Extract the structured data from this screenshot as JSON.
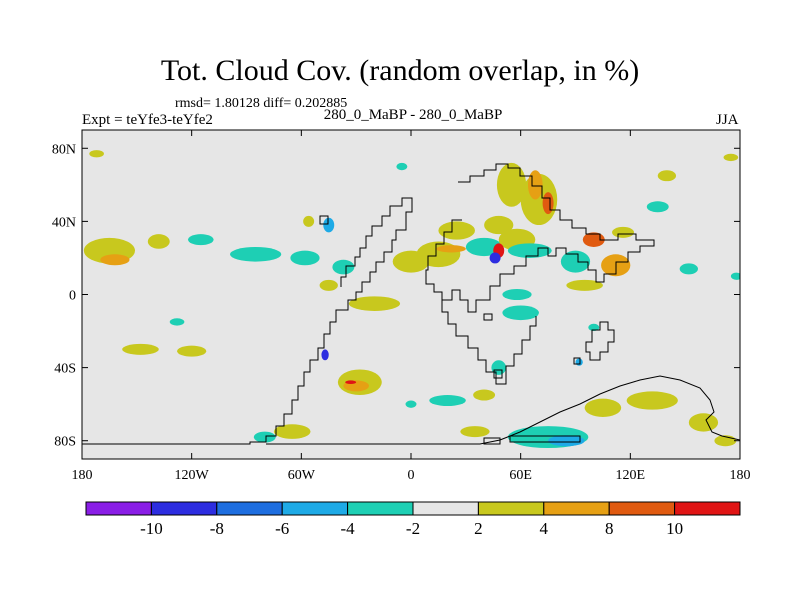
{
  "header": {
    "title": "Tot. Cloud Cov. (random overlap, in %)",
    "stats": "rmsd= 1.80128 diff= 0.202885",
    "subtitle": "280_0_MaBP - 280_0_MaBP",
    "left_label": "Expt = teYfe3-teYfe2",
    "right_label": "JJA"
  },
  "chart_data": {
    "type": "heatmap",
    "title": "Tot. Cloud Cov. (random overlap, in %)",
    "xlim": [
      -180,
      180
    ],
    "ylim": [
      -90,
      90
    ],
    "x_ticks": [
      {
        "value": -180,
        "label": "180"
      },
      {
        "value": -120,
        "label": "120W"
      },
      {
        "value": -60,
        "label": "60W"
      },
      {
        "value": 0,
        "label": "0"
      },
      {
        "value": 60,
        "label": "60E"
      },
      {
        "value": 120,
        "label": "120E"
      },
      {
        "value": 180,
        "label": "180"
      }
    ],
    "y_ticks": [
      {
        "value": 80,
        "label": "80N"
      },
      {
        "value": 40,
        "label": "40N"
      },
      {
        "value": 0,
        "label": "0"
      },
      {
        "value": -40,
        "label": "40S"
      },
      {
        "value": -80,
        "label": "80S"
      }
    ],
    "colorbar": {
      "labels": [
        "-10",
        "-8",
        "-6",
        "-4",
        "-2",
        "2",
        "4",
        "8",
        "10"
      ],
      "colors": [
        "#8a1ee6",
        "#2d2de0",
        "#1e6ee0",
        "#1eaae6",
        "#1ecfb4",
        "#e6e6e6",
        "#c8c81e",
        "#e6a014",
        "#e05a10",
        "#e01414"
      ]
    },
    "background_color": "#e6e6e6",
    "patches": [
      {
        "lon": -165,
        "lat": 24,
        "rx": 14,
        "ry": 7,
        "color": "#c8c81e"
      },
      {
        "lon": -162,
        "lat": 19,
        "rx": 8,
        "ry": 3,
        "color": "#e6a014"
      },
      {
        "lon": -138,
        "lat": 29,
        "rx": 6,
        "ry": 4,
        "color": "#c8c81e"
      },
      {
        "lon": -115,
        "lat": 30,
        "rx": 7,
        "ry": 3,
        "color": "#1ecfb4"
      },
      {
        "lon": -128,
        "lat": -15,
        "rx": 4,
        "ry": 2,
        "color": "#1ecfb4"
      },
      {
        "lon": -148,
        "lat": -30,
        "rx": 10,
        "ry": 3,
        "color": "#c8c81e"
      },
      {
        "lon": -120,
        "lat": -31,
        "rx": 8,
        "ry": 3,
        "color": "#c8c81e"
      },
      {
        "lon": -85,
        "lat": 22,
        "rx": 14,
        "ry": 4,
        "color": "#1ecfb4"
      },
      {
        "lon": -58,
        "lat": 20,
        "rx": 8,
        "ry": 4,
        "color": "#1ecfb4"
      },
      {
        "lon": -37,
        "lat": 15,
        "rx": 6,
        "ry": 4,
        "color": "#1ecfb4"
      },
      {
        "lon": -45,
        "lat": 5,
        "rx": 5,
        "ry": 3,
        "color": "#c8c81e"
      },
      {
        "lon": -45,
        "lat": 38,
        "rx": 3,
        "ry": 4,
        "color": "#1eaae6"
      },
      {
        "lon": -56,
        "lat": 40,
        "rx": 3,
        "ry": 3,
        "color": "#c8c81e"
      },
      {
        "lon": -20,
        "lat": -5,
        "rx": 14,
        "ry": 4,
        "color": "#c8c81e"
      },
      {
        "lon": 0,
        "lat": 18,
        "rx": 10,
        "ry": 6,
        "color": "#c8c81e"
      },
      {
        "lon": 15,
        "lat": 22,
        "rx": 12,
        "ry": 7,
        "color": "#c8c81e"
      },
      {
        "lon": 25,
        "lat": 35,
        "rx": 10,
        "ry": 5,
        "color": "#c8c81e"
      },
      {
        "lon": 22,
        "lat": 25,
        "rx": 8,
        "ry": 2,
        "color": "#e6a014"
      },
      {
        "lon": 40,
        "lat": 26,
        "rx": 10,
        "ry": 5,
        "color": "#1ecfb4"
      },
      {
        "lon": 48,
        "lat": 38,
        "rx": 8,
        "ry": 5,
        "color": "#c8c81e"
      },
      {
        "lon": 58,
        "lat": 30,
        "rx": 10,
        "ry": 6,
        "color": "#c8c81e"
      },
      {
        "lon": 55,
        "lat": 60,
        "rx": 8,
        "ry": 12,
        "color": "#c8c81e"
      },
      {
        "lon": 70,
        "lat": 52,
        "rx": 10,
        "ry": 14,
        "color": "#c8c81e"
      },
      {
        "lon": 68,
        "lat": 60,
        "rx": 4,
        "ry": 8,
        "color": "#e6a014"
      },
      {
        "lon": 75,
        "lat": 50,
        "rx": 3,
        "ry": 6,
        "color": "#e05a10"
      },
      {
        "lon": 48,
        "lat": 24,
        "rx": 3,
        "ry": 4,
        "color": "#e01414"
      },
      {
        "lon": 46,
        "lat": 20,
        "rx": 3,
        "ry": 3,
        "color": "#2d2de0"
      },
      {
        "lon": 65,
        "lat": 24,
        "rx": 12,
        "ry": 4,
        "color": "#1ecfb4"
      },
      {
        "lon": 90,
        "lat": 18,
        "rx": 8,
        "ry": 6,
        "color": "#1ecfb4"
      },
      {
        "lon": 100,
        "lat": 30,
        "rx": 6,
        "ry": 4,
        "color": "#e05a10"
      },
      {
        "lon": 112,
        "lat": 16,
        "rx": 8,
        "ry": 6,
        "color": "#e6a014"
      },
      {
        "lon": 116,
        "lat": 34,
        "rx": 6,
        "ry": 3,
        "color": "#c8c81e"
      },
      {
        "lon": 152,
        "lat": 14,
        "rx": 5,
        "ry": 3,
        "color": "#1ecfb4"
      },
      {
        "lon": 178,
        "lat": 10,
        "rx": 3,
        "ry": 2,
        "color": "#1ecfb4"
      },
      {
        "lon": 95,
        "lat": 5,
        "rx": 10,
        "ry": 3,
        "color": "#c8c81e"
      },
      {
        "lon": 58,
        "lat": 0,
        "rx": 8,
        "ry": 3,
        "color": "#1ecfb4"
      },
      {
        "lon": 60,
        "lat": -10,
        "rx": 10,
        "ry": 4,
        "color": "#1ecfb4"
      },
      {
        "lon": 48,
        "lat": -40,
        "rx": 4,
        "ry": 4,
        "color": "#1ecfb4"
      },
      {
        "lon": 92,
        "lat": -37,
        "rx": 2,
        "ry": 2,
        "color": "#1eaae6"
      },
      {
        "lon": -28,
        "lat": -48,
        "rx": 12,
        "ry": 7,
        "color": "#c8c81e"
      },
      {
        "lon": -30,
        "lat": -50,
        "rx": 7,
        "ry": 3,
        "color": "#e6a014"
      },
      {
        "lon": -33,
        "lat": -48,
        "rx": 3,
        "ry": 1,
        "color": "#e01414"
      },
      {
        "lon": -47,
        "lat": -33,
        "rx": 2,
        "ry": 3,
        "color": "#2d2de0"
      },
      {
        "lon": 0,
        "lat": -60,
        "rx": 3,
        "ry": 2,
        "color": "#1ecfb4"
      },
      {
        "lon": 20,
        "lat": -58,
        "rx": 10,
        "ry": 3,
        "color": "#1ecfb4"
      },
      {
        "lon": 40,
        "lat": -55,
        "rx": 6,
        "ry": 3,
        "color": "#c8c81e"
      },
      {
        "lon": -65,
        "lat": -75,
        "rx": 10,
        "ry": 4,
        "color": "#c8c81e"
      },
      {
        "lon": -80,
        "lat": -78,
        "rx": 6,
        "ry": 3,
        "color": "#1ecfb4"
      },
      {
        "lon": 35,
        "lat": -75,
        "rx": 8,
        "ry": 3,
        "color": "#c8c81e"
      },
      {
        "lon": 75,
        "lat": -78,
        "rx": 22,
        "ry": 6,
        "color": "#1ecfb4"
      },
      {
        "lon": 85,
        "lat": -80,
        "rx": 10,
        "ry": 3,
        "color": "#1eaae6"
      },
      {
        "lon": 105,
        "lat": -62,
        "rx": 10,
        "ry": 5,
        "color": "#c8c81e"
      },
      {
        "lon": 132,
        "lat": -58,
        "rx": 14,
        "ry": 5,
        "color": "#c8c81e"
      },
      {
        "lon": 160,
        "lat": -70,
        "rx": 8,
        "ry": 5,
        "color": "#c8c81e"
      },
      {
        "lon": 172,
        "lat": -80,
        "rx": 6,
        "ry": 3,
        "color": "#c8c81e"
      },
      {
        "lon": -172,
        "lat": 77,
        "rx": 4,
        "ry": 2,
        "color": "#c8c81e"
      },
      {
        "lon": -5,
        "lat": 70,
        "rx": 3,
        "ry": 2,
        "color": "#1ecfb4"
      },
      {
        "lon": 175,
        "lat": 75,
        "rx": 4,
        "ry": 2,
        "color": "#c8c81e"
      },
      {
        "lon": 140,
        "lat": 65,
        "rx": 5,
        "ry": 3,
        "color": "#c8c81e"
      },
      {
        "lon": 135,
        "lat": 48,
        "rx": 6,
        "ry": 3,
        "color": "#1ecfb4"
      },
      {
        "lon": 100,
        "lat": -18,
        "rx": 3,
        "ry": 2,
        "color": "#1ecfb4"
      }
    ]
  }
}
